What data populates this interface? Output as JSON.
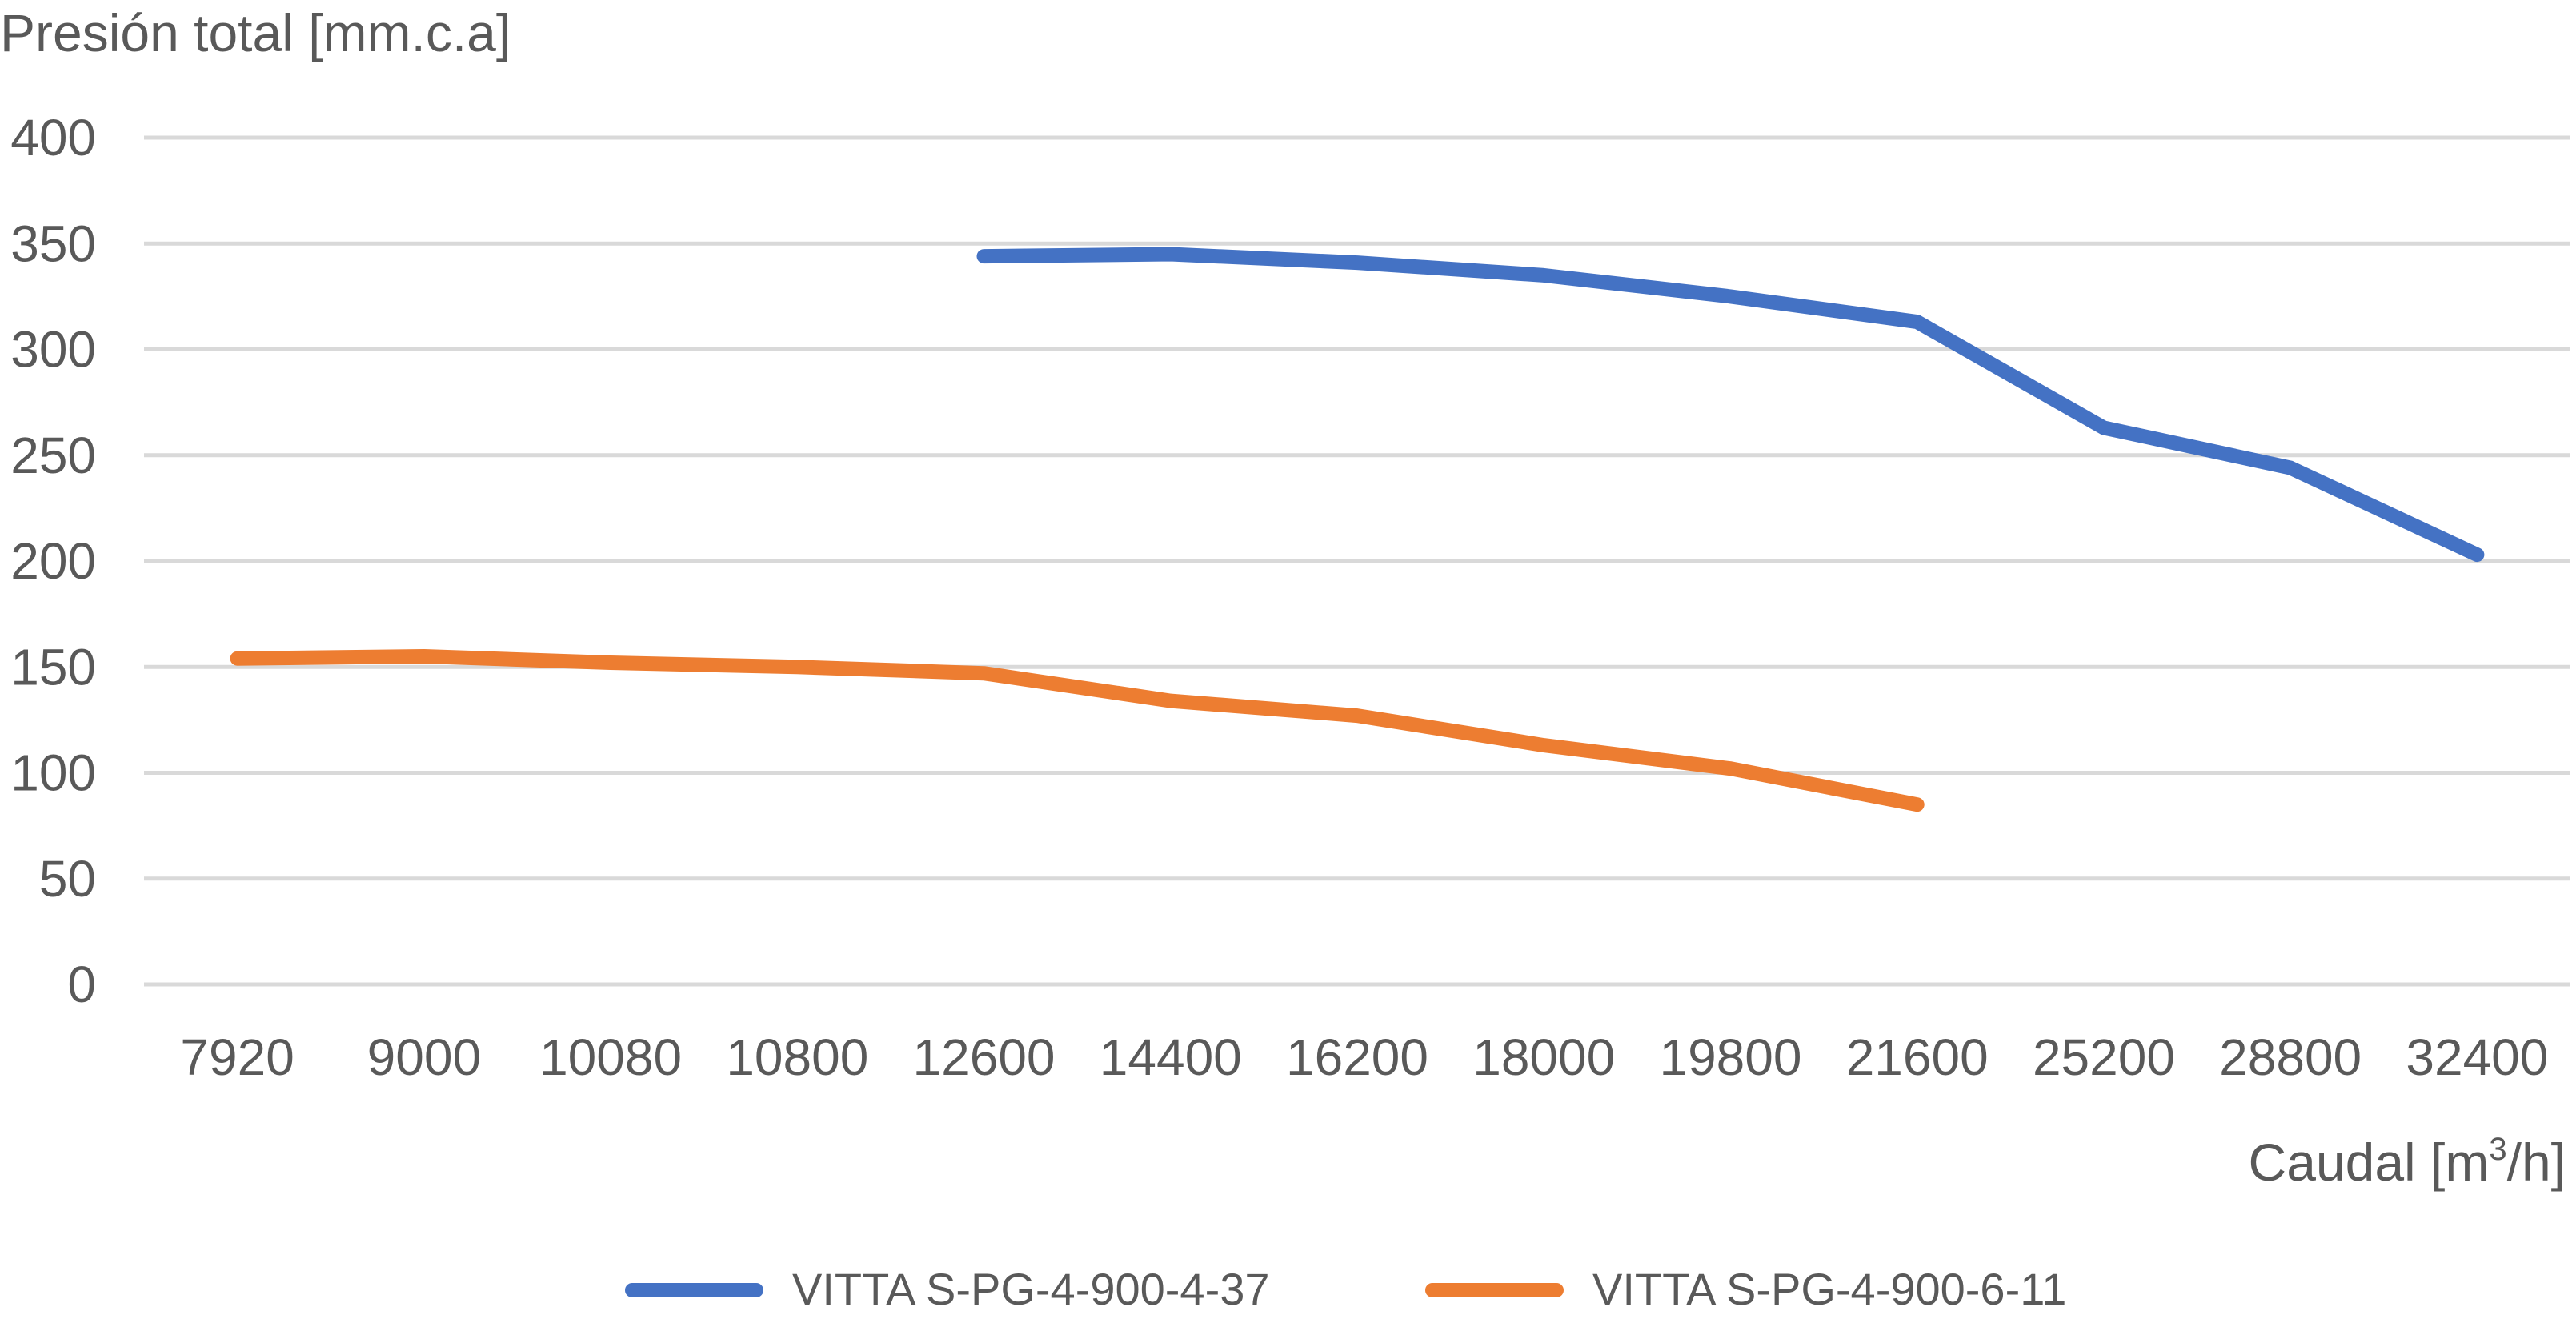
{
  "chart_data": {
    "type": "line",
    "title": "",
    "ylabel": "Presión total [mm.c.a]",
    "xlabel": {
      "main": "Caudal [m",
      "superscript": "3",
      "tail": "/h]"
    },
    "categories": [
      "7920",
      "9000",
      "10080",
      "10800",
      "12600",
      "14400",
      "16200",
      "18000",
      "19800",
      "21600",
      "25200",
      "28800",
      "32400"
    ],
    "ylim": [
      0,
      400
    ],
    "yticks": [
      0,
      50,
      100,
      150,
      200,
      250,
      300,
      350,
      400
    ],
    "grid": true,
    "legend_position": "bottom",
    "series": [
      {
        "name": "VITTA S-PG-4-900-4-37",
        "color": "#4472c4",
        "values": [
          null,
          null,
          null,
          null,
          344,
          345,
          341,
          335,
          325,
          313,
          263,
          244,
          203
        ]
      },
      {
        "name": "VITTA S-PG-4-900-6-11",
        "color": "#ed7d31",
        "values": [
          154,
          155,
          152,
          150,
          147,
          134,
          127,
          113,
          102,
          85,
          null,
          null,
          null
        ]
      }
    ]
  }
}
